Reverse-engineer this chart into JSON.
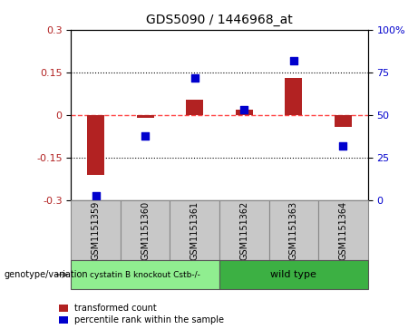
{
  "title": "GDS5090 / 1446968_at",
  "samples": [
    "GSM1151359",
    "GSM1151360",
    "GSM1151361",
    "GSM1151362",
    "GSM1151363",
    "GSM1151364"
  ],
  "transformed_count": [
    -0.21,
    -0.01,
    0.055,
    0.02,
    0.13,
    -0.04
  ],
  "percentile_rank": [
    3,
    38,
    72,
    53,
    82,
    32
  ],
  "ylim_left": [
    -0.3,
    0.3
  ],
  "ylim_right": [
    0,
    100
  ],
  "yticks_left": [
    -0.3,
    -0.15,
    0,
    0.15,
    0.3
  ],
  "yticks_right": [
    0,
    25,
    50,
    75,
    100
  ],
  "bar_color": "#b22222",
  "dot_color": "#0000cd",
  "hline_color": "#ff4444",
  "dotted_line_color": "#000000",
  "group1_label": "cystatin B knockout Cstb-/-",
  "group2_label": "wild type",
  "group1_color": "#90ee90",
  "group2_color": "#3cb043",
  "group1_indices": [
    0,
    1,
    2
  ],
  "group2_indices": [
    3,
    4,
    5
  ],
  "genotype_label": "genotype/variation",
  "legend_bar_label": "transformed count",
  "legend_dot_label": "percentile rank within the sample",
  "bar_width": 0.35,
  "dot_size": 40,
  "sample_box_color": "#c8c8c8",
  "sample_box_edge": "#888888"
}
